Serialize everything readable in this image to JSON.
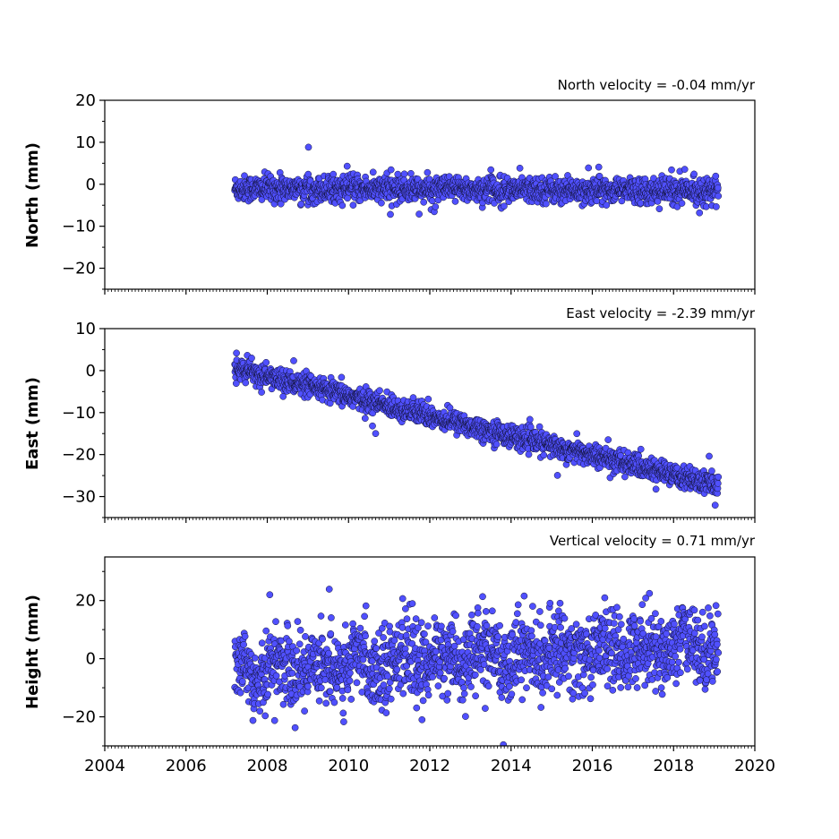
{
  "chart_data": [
    {
      "type": "scatter",
      "title": "North velocity = -0.04 mm/yr",
      "ylabel": "North (mm)",
      "xlim": [
        2004,
        2020
      ],
      "ylim": [
        -25,
        20
      ],
      "yticks": [
        20,
        10,
        0,
        -10,
        -20
      ],
      "ytick_labels": [
        "20",
        "10",
        "0",
        "−10",
        "−20"
      ],
      "series": [
        {
          "x_start": 2007.2,
          "x_end": 2019.1,
          "count": 1700,
          "trend_start": -1.0,
          "trend_end": -1.5,
          "noise_sd": 1.5,
          "color": "#5050ff"
        }
      ]
    },
    {
      "type": "scatter",
      "title": "East velocity = -2.39 mm/yr",
      "ylabel": "East (mm)",
      "xlim": [
        2004,
        2020
      ],
      "ylim": [
        -35,
        10
      ],
      "yticks": [
        10,
        0,
        -10,
        -20,
        -30
      ],
      "ytick_labels": [
        "10",
        "0",
        "−10",
        "−20",
        "−30"
      ],
      "series": [
        {
          "x_start": 2007.2,
          "x_end": 2019.1,
          "count": 1700,
          "trend_start": 0.5,
          "trend_end": -27.5,
          "noise_sd": 1.3,
          "color": "#5050ff"
        }
      ]
    },
    {
      "type": "scatter",
      "title": "Vertical velocity = 0.71 mm/yr",
      "ylabel": "Height (mm)",
      "xlim": [
        2004,
        2020
      ],
      "ylim": [
        -30,
        35
      ],
      "yticks": [
        20,
        0,
        -20
      ],
      "ytick_labels": [
        "20",
        "0",
        "−20"
      ],
      "xticks": [
        2004,
        2006,
        2008,
        2010,
        2012,
        2014,
        2016,
        2018,
        2020
      ],
      "xtick_labels": [
        "2004",
        "2006",
        "2008",
        "2010",
        "2012",
        "2014",
        "2016",
        "2018",
        "2020"
      ],
      "series": [
        {
          "x_start": 2007.2,
          "x_end": 2019.1,
          "count": 1700,
          "trend_start": -4.0,
          "trend_end": 5.0,
          "noise_sd": 6.5,
          "color": "#5050ff"
        }
      ]
    }
  ]
}
